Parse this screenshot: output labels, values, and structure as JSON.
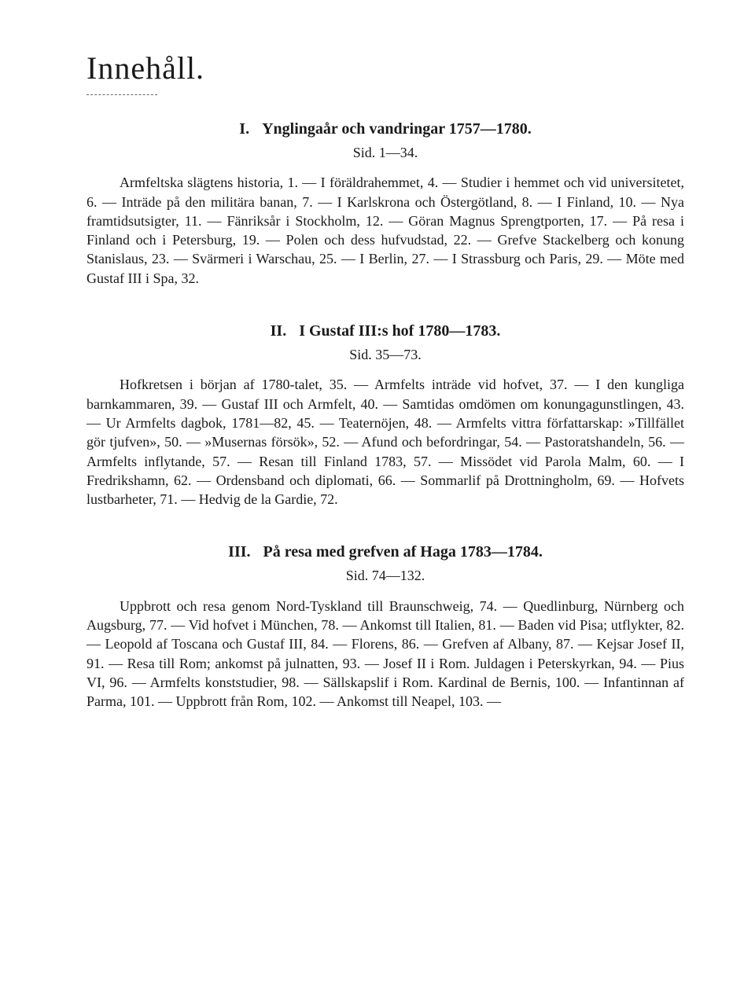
{
  "page": {
    "title": "Innehåll.",
    "sections": [
      {
        "num": "I.",
        "title": "Ynglingaår och vandringar 1757—1780.",
        "sid": "Sid. 1—34.",
        "body": "Armfeltska slägtens historia, 1. — I föräldrahemmet, 4. — Studier i hemmet och vid universitetet, 6. — Inträde på den militära banan, 7. — I Karlskrona och Östergötland, 8. — I Finland, 10. — Nya framtidsutsigter, 11. — Fänriksår i Stockholm, 12. — Göran Magnus Sprengtporten, 17. — På resa i Finland och i Petersburg, 19. — Polen och dess hufvudstad, 22. — Grefve Stackelberg och konung Stanislaus, 23. — Svärmeri i Warschau, 25. — I Berlin, 27. — I Strassburg och Paris, 29. — Möte med Gustaf III i Spa, 32."
      },
      {
        "num": "II.",
        "title": "I Gustaf III:s hof 1780—1783.",
        "sid": "Sid. 35—73.",
        "body": "Hofkretsen i början af 1780-talet, 35. — Armfelts inträde vid hofvet, 37. — I den kungliga barnkammaren, 39. — Gustaf III och Armfelt, 40. — Samtidas omdömen om konungagunstlingen, 43. — Ur Armfelts dagbok, 1781—82, 45. — Teaternöjen, 48. — Armfelts vittra författarskap: »Tillfället gör tjufven», 50. — »Musernas försök», 52. — Afund och befordringar, 54. — Pastoratshandeln, 56. — Armfelts inflytande, 57. — Resan till Finland 1783, 57. — Missödet vid Parola Malm, 60. — I Fredrikshamn, 62. — Ordensband och diplomati, 66. — Sommarlif på Drottningholm, 69. — Hofvets lustbarheter, 71. — Hedvig de la Gardie, 72."
      },
      {
        "num": "III.",
        "title": "På resa med grefven af Haga 1783—1784.",
        "sid": "Sid. 74—132.",
        "body": "Uppbrott och resa genom Nord-Tyskland till Braunschweig, 74. — Quedlinburg, Nürnberg och Augsburg, 77. — Vid hofvet i München, 78. — Ankomst till Italien, 81. — Baden vid Pisa; utflykter, 82. — Leopold af Toscana och Gustaf III, 84. — Florens, 86. — Grefven af Albany, 87. — Kejsar Josef II, 91. — Resa till Rom; ankomst på julnatten, 93. — Josef II i Rom. Juldagen i Peterskyrkan, 94. — Pius VI, 96. — Armfelts konststudier, 98. — Sällskapslif i Rom. Kardinal de Bernis, 100. — Infantinnan af Parma, 101. — Uppbrott från Rom, 102. — Ankomst till Neapel, 103. —"
      }
    ]
  }
}
